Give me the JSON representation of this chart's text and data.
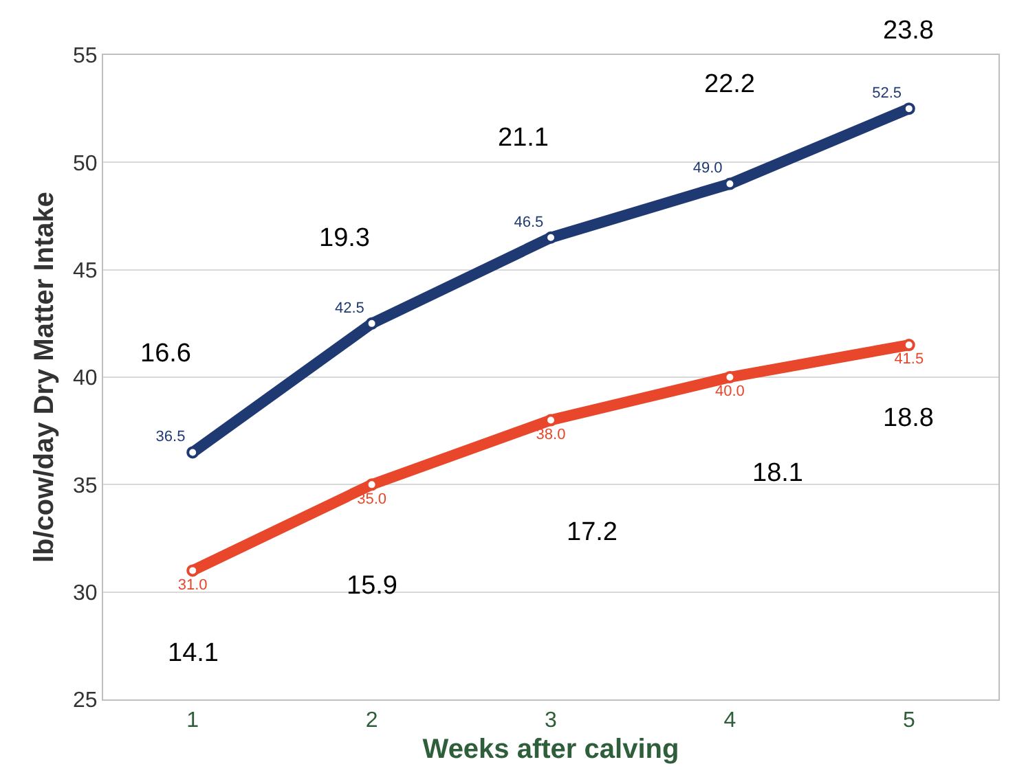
{
  "chart_data": {
    "type": "line",
    "xlabel": "Weeks after calving",
    "ylabel": "lb/cow/day Dry Matter Intake",
    "categories": [
      "1",
      "2",
      "3",
      "4",
      "5"
    ],
    "series": [
      {
        "color": "#1f3a73",
        "values": [
          36.5,
          42.5,
          46.5,
          49.0,
          52.5
        ],
        "value_labels": [
          "36.5",
          "42.5",
          "46.5",
          "49.0",
          "52.5"
        ]
      },
      {
        "color": "#e8472b",
        "values": [
          31.0,
          35.0,
          38.0,
          40.0,
          41.5
        ],
        "value_labels": [
          "31.0",
          "35.0",
          "38.0",
          "40.0",
          "41.5"
        ]
      }
    ],
    "ylim": [
      25,
      55
    ],
    "yticks": [
      25,
      30,
      35,
      40,
      45,
      50,
      55
    ],
    "grid": "y",
    "marker": "circle",
    "line_style": "solid",
    "annotations": [
      "16.6",
      "19.3",
      "21.1",
      "22.2",
      "23.8",
      "14.1",
      "15.9",
      "17.2",
      "18.1",
      "18.8"
    ]
  }
}
